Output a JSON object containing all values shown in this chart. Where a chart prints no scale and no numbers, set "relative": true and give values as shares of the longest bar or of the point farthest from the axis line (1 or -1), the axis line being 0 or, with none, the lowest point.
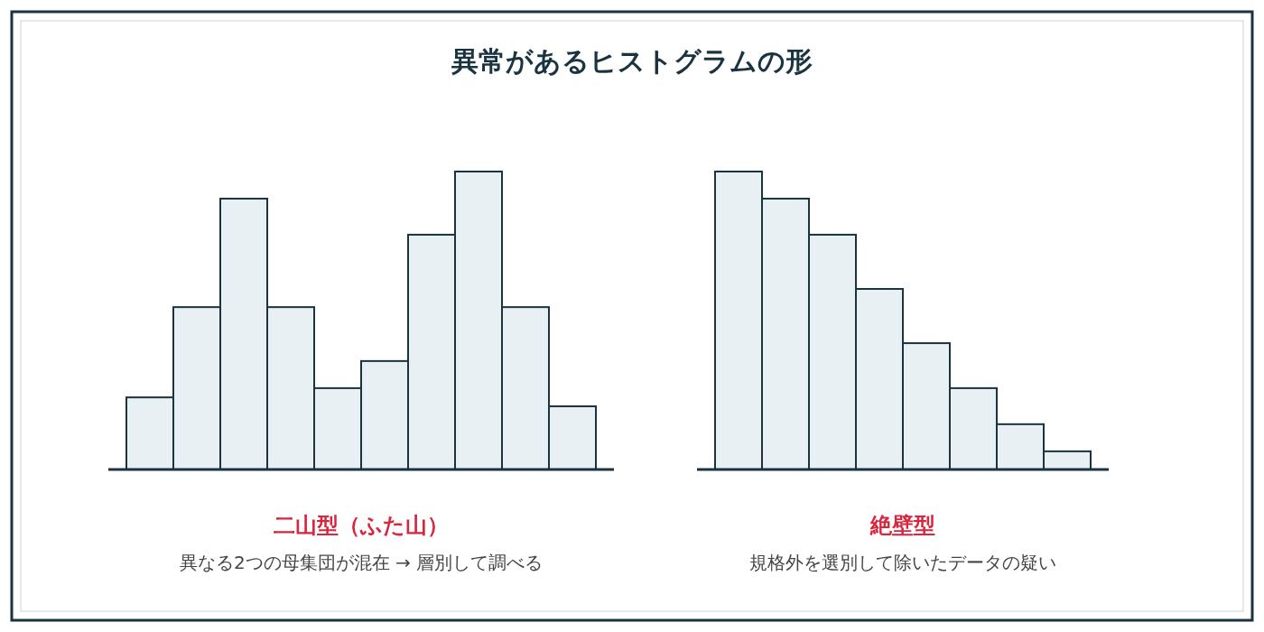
{
  "chart_data": [
    {
      "type": "bar",
      "relative": true,
      "title": "二山型（ふた山）",
      "subtitle": "異なる2つの母集団が混在 → 層別して調べる",
      "annotations": [
        "異常があるヒストグラムの形"
      ],
      "categories": [
        null,
        null,
        null,
        null,
        null,
        null,
        null,
        null,
        null,
        null
      ],
      "color": "#e8f0f3",
      "values": [
        0.242,
        0.545,
        0.909,
        0.545,
        0.273,
        0.364,
        0.788,
        1,
        0.545,
        0.212
      ]
    },
    {
      "type": "bar",
      "relative": true,
      "title": "絶壁型",
      "subtitle": "規格外を選別して除いたデータの疑い",
      "categories": [
        null,
        null,
        null,
        null,
        null,
        null,
        null,
        null
      ],
      "color": "#e8f0f3",
      "values": [
        1,
        0.909,
        0.788,
        0.606,
        0.424,
        0.273,
        0.152,
        0.061
      ]
    }
  ]
}
